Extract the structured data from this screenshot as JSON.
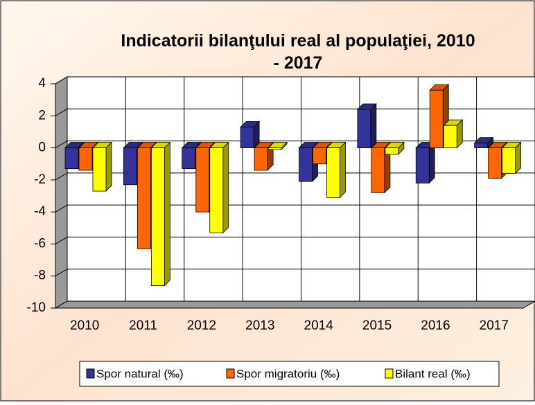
{
  "chart_data": {
    "type": "bar3d",
    "title": "Indicatorii bilanţului real  al populaţiei, 2010 - 2017",
    "categories": [
      "2010",
      "2011",
      "2012",
      "2013",
      "2014",
      "2015",
      "2016",
      "2017"
    ],
    "series": [
      {
        "name": "Spor natural (‰)",
        "color": "#333399",
        "values": [
          -1.3,
          -2.3,
          -1.3,
          1.3,
          -2.1,
          2.4,
          -2.2,
          0.3
        ]
      },
      {
        "name": "Spor migratoriu (‰)",
        "color": "#ff6600",
        "values": [
          -1.4,
          -6.3,
          -4.0,
          -1.4,
          -1.0,
          -2.8,
          3.6,
          -1.9
        ]
      },
      {
        "name": "Bilant real (‰)",
        "color": "#ffff00",
        "values": [
          -2.7,
          -8.6,
          -5.3,
          -0.1,
          -3.1,
          -0.4,
          1.4,
          -1.6
        ]
      }
    ],
    "ylim": [
      -10,
      4
    ],
    "yticks": [
      -10,
      -8,
      -6,
      -4,
      -2,
      0,
      2,
      4
    ],
    "grid": true,
    "legend": "bottom"
  }
}
